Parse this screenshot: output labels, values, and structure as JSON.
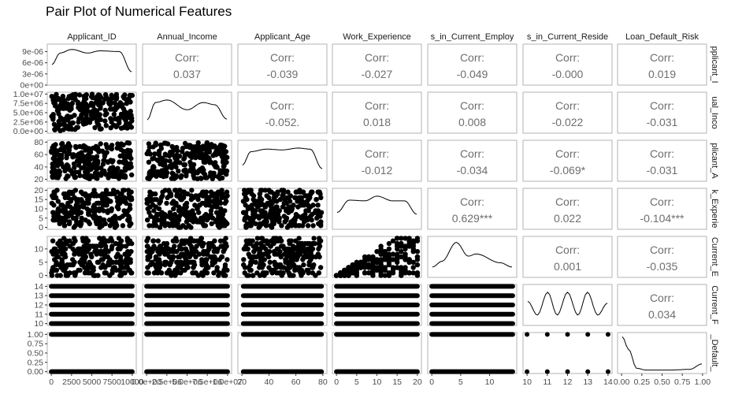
{
  "chart_data": {
    "type": "pairplot",
    "title": "Pair Plot of Numerical Features",
    "strip_labels": [
      "Applicant_ID",
      "Annual_Income",
      "Applicant_Age",
      "Work_Experience",
      "s_in_Current_Employ",
      "s_in_Current_Reside",
      "Loan_Default_Risk"
    ],
    "row_strip_labels": [
      "pplicant_I",
      "ual_Inco",
      "plicant_A",
      "k_Experie",
      "Current_E",
      "Current_F",
      "_Default_"
    ],
    "corr_label": "Corr:",
    "correlations": [
      {
        "row": 0,
        "col": 1,
        "value": "0.037"
      },
      {
        "row": 0,
        "col": 2,
        "value": "-0.039"
      },
      {
        "row": 0,
        "col": 3,
        "value": "-0.027"
      },
      {
        "row": 0,
        "col": 4,
        "value": "-0.049"
      },
      {
        "row": 0,
        "col": 5,
        "value": "-0.000"
      },
      {
        "row": 0,
        "col": 6,
        "value": "0.019"
      },
      {
        "row": 1,
        "col": 2,
        "value": "-0.052."
      },
      {
        "row": 1,
        "col": 3,
        "value": "0.018"
      },
      {
        "row": 1,
        "col": 4,
        "value": "0.008"
      },
      {
        "row": 1,
        "col": 5,
        "value": "-0.022"
      },
      {
        "row": 1,
        "col": 6,
        "value": "-0.031"
      },
      {
        "row": 2,
        "col": 3,
        "value": "-0.012"
      },
      {
        "row": 2,
        "col": 4,
        "value": "-0.034"
      },
      {
        "row": 2,
        "col": 5,
        "value": "-0.069*"
      },
      {
        "row": 2,
        "col": 6,
        "value": "-0.031"
      },
      {
        "row": 3,
        "col": 4,
        "value": "0.629***"
      },
      {
        "row": 3,
        "col": 5,
        "value": "0.022"
      },
      {
        "row": 3,
        "col": 6,
        "value": "-0.104***"
      },
      {
        "row": 4,
        "col": 5,
        "value": "0.001"
      },
      {
        "row": 4,
        "col": 6,
        "value": "-0.035"
      },
      {
        "row": 5,
        "col": 6,
        "value": "0.034"
      }
    ],
    "y_axes": [
      {
        "ticks": [
          0,
          3e-06,
          6e-06,
          9e-06
        ],
        "labels": [
          "0e+00",
          "3e-06",
          "6e-06",
          "9e-06"
        ],
        "range": [
          0,
          1.1e-05
        ]
      },
      {
        "ticks": [
          0,
          2500000.0,
          5000000.0,
          7500000.0,
          10000000.0
        ],
        "labels": [
          "0.0e+00",
          "2.5e+06",
          "5.0e+06",
          "7.5e+06",
          "1.0e+07"
        ],
        "range": [
          -500000.0,
          10500000.0
        ]
      },
      {
        "ticks": [
          20,
          40,
          60,
          80
        ],
        "labels": [
          "20",
          "40",
          "60",
          "80"
        ],
        "range": [
          17,
          83
        ]
      },
      {
        "ticks": [
          0,
          5,
          10,
          15,
          20
        ],
        "labels": [
          "0",
          "5",
          "10",
          "15",
          "20"
        ],
        "range": [
          -1,
          21
        ]
      },
      {
        "ticks": [
          0,
          5,
          10
        ],
        "labels": [
          "0",
          "5",
          "10"
        ],
        "range": [
          -0.7,
          14.7
        ]
      },
      {
        "ticks": [
          10,
          11,
          12,
          13,
          14
        ],
        "labels": [
          "10",
          "11",
          "12",
          "13",
          "14"
        ],
        "range": [
          9.8,
          14.2
        ]
      },
      {
        "ticks": [
          0,
          0.25,
          0.5,
          0.75,
          1.0
        ],
        "labels": [
          "0.00",
          "0.25",
          "0.50",
          "0.75",
          "1.00"
        ],
        "range": [
          -0.05,
          1.05
        ]
      }
    ],
    "x_axes": [
      {
        "ticks": [
          0,
          2500,
          5000,
          7500,
          10000
        ],
        "labels": [
          "0",
          "2500",
          "5000",
          "7500",
          "10000"
        ],
        "range": [
          -500,
          10500
        ]
      },
      {
        "ticks": [
          0,
          2500000.0,
          5000000.0,
          7500000.0,
          10000000.0
        ],
        "labels": [
          "0.0e+00",
          "2.5e+06",
          "5.0e+06",
          "7.5e+06",
          "1.0e+07"
        ],
        "range": [
          -500000.0,
          10500000.0
        ]
      },
      {
        "ticks": [
          20,
          40,
          60,
          80
        ],
        "labels": [
          "20",
          "40",
          "60",
          "80"
        ],
        "range": [
          17,
          83
        ]
      },
      {
        "ticks": [
          0,
          5,
          10,
          15,
          20
        ],
        "labels": [
          "0",
          "5",
          "10",
          "15",
          "20"
        ],
        "range": [
          -1,
          21
        ]
      },
      {
        "ticks": [
          0,
          5,
          10
        ],
        "labels": [
          "0",
          "5",
          "10"
        ],
        "range": [
          -0.7,
          14.7
        ]
      },
      {
        "ticks": [
          10,
          11,
          12,
          13,
          14
        ],
        "labels": [
          "10",
          "11",
          "12",
          "13",
          "14"
        ],
        "range": [
          9.8,
          14.2
        ]
      },
      {
        "ticks": [
          0,
          0.25,
          0.5,
          0.75,
          1.0
        ],
        "labels": "0.00 0.25 0.50 0.75 1.00",
        "range": [
          -0.05,
          1.05
        ]
      }
    ],
    "variable_domains": [
      {
        "min": 0,
        "max": 10000,
        "discrete": false
      },
      {
        "min": 0,
        "max": 10000000.0,
        "discrete": false
      },
      {
        "min": 21,
        "max": 79,
        "discrete": false
      },
      {
        "min": 0,
        "max": 20,
        "discrete": false
      },
      {
        "min": 0,
        "max": 14,
        "discrete": false
      },
      {
        "values": [
          10,
          11,
          12,
          13,
          14
        ],
        "discrete": true
      },
      {
        "values": [
          0,
          1
        ],
        "discrete": true
      }
    ],
    "density_shapes": [
      [
        [
          0,
          0.5
        ],
        [
          0.1,
          0.82
        ],
        [
          0.25,
          0.92
        ],
        [
          0.45,
          0.82
        ],
        [
          0.6,
          0.88
        ],
        [
          0.85,
          0.86
        ],
        [
          1,
          0.3
        ]
      ],
      [
        [
          0,
          0.3
        ],
        [
          0.1,
          0.78
        ],
        [
          0.25,
          0.85
        ],
        [
          0.5,
          0.58
        ],
        [
          0.7,
          0.78
        ],
        [
          0.85,
          0.72
        ],
        [
          1,
          0.32
        ]
      ],
      [
        [
          0,
          0.38
        ],
        [
          0.1,
          0.75
        ],
        [
          0.3,
          0.82
        ],
        [
          0.5,
          0.8
        ],
        [
          0.7,
          0.85
        ],
        [
          0.85,
          0.82
        ],
        [
          1,
          0.28
        ]
      ],
      [
        [
          0,
          0.4
        ],
        [
          0.15,
          0.74
        ],
        [
          0.35,
          0.72
        ],
        [
          0.5,
          0.85
        ],
        [
          0.7,
          0.72
        ],
        [
          0.85,
          0.72
        ],
        [
          1,
          0.35
        ]
      ],
      [
        [
          0,
          0.22
        ],
        [
          0.12,
          0.38
        ],
        [
          0.3,
          0.9
        ],
        [
          0.45,
          0.52
        ],
        [
          0.55,
          0.58
        ],
        [
          0.85,
          0.34
        ],
        [
          1,
          0.22
        ]
      ],
      [
        [
          0,
          0.6
        ],
        [
          0.12,
          0.22
        ],
        [
          0.25,
          0.85
        ],
        [
          0.37,
          0.22
        ],
        [
          0.5,
          0.85
        ],
        [
          0.63,
          0.22
        ],
        [
          0.75,
          0.85
        ],
        [
          0.88,
          0.22
        ],
        [
          1,
          0.55
        ]
      ],
      [
        [
          0,
          0.95
        ],
        [
          0.08,
          0.6
        ],
        [
          0.18,
          0.08
        ],
        [
          0.3,
          0.03
        ],
        [
          0.6,
          0.03
        ],
        [
          0.85,
          0.05
        ],
        [
          1,
          0.2
        ]
      ]
    ],
    "grid": false,
    "legend": "none"
  }
}
